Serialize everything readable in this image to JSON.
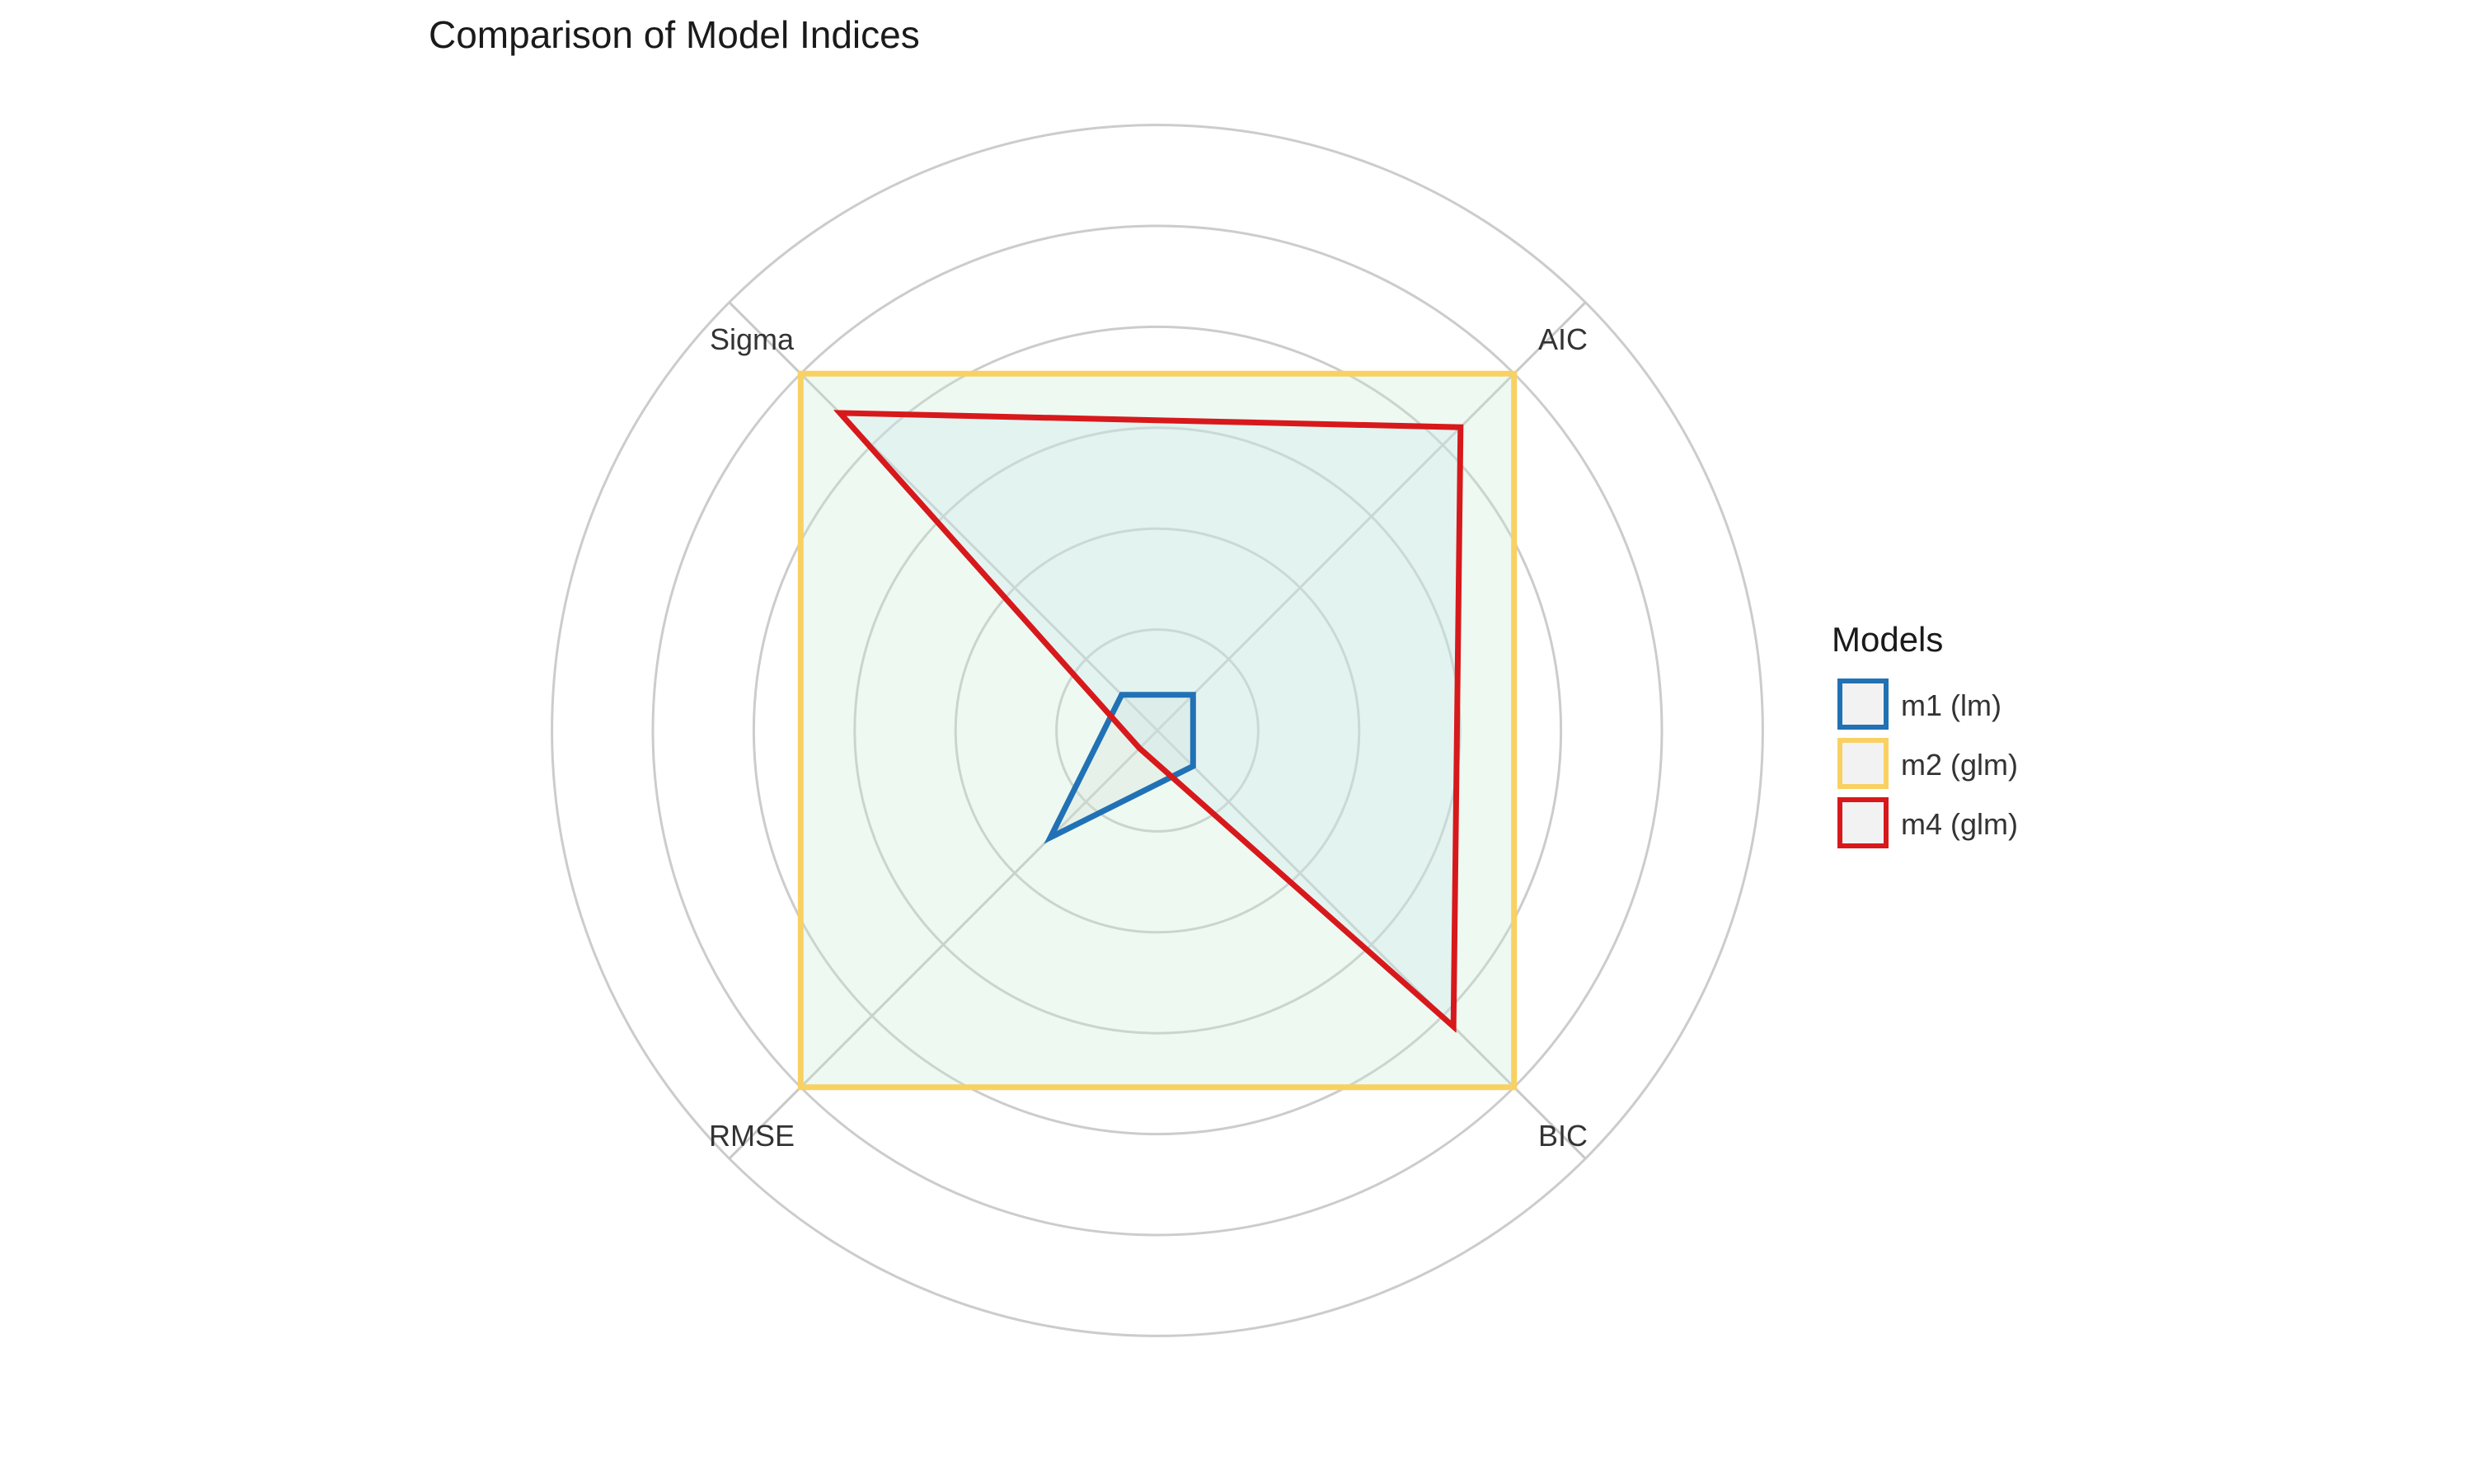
{
  "chart_data": {
    "type": "radar",
    "title": "Comparison of Model Indices",
    "axes": [
      "AIC",
      "BIC",
      "RMSE",
      "Sigma"
    ],
    "rlim": [
      0,
      1
    ],
    "grid": true,
    "grid_levels": [
      0.2,
      0.4,
      0.6,
      0.8,
      1.0,
      1.2
    ],
    "legend": {
      "title": "Models",
      "placement": "right"
    },
    "series": [
      {
        "name": "m1 (lm)",
        "color": "#2171b5",
        "fill": "#d9d9d9",
        "values": [
          0.1,
          0.1,
          0.3,
          0.1
        ]
      },
      {
        "name": "m2 (glm)",
        "color": "#f9d162",
        "fill": "#c7ead4",
        "values": [
          1.0,
          1.0,
          1.0,
          1.0
        ]
      },
      {
        "name": "m4 (glm)",
        "color": "#d7191c",
        "fill": "#c9e6ec",
        "values": [
          0.85,
          0.83,
          0.05,
          0.89
        ]
      }
    ]
  }
}
